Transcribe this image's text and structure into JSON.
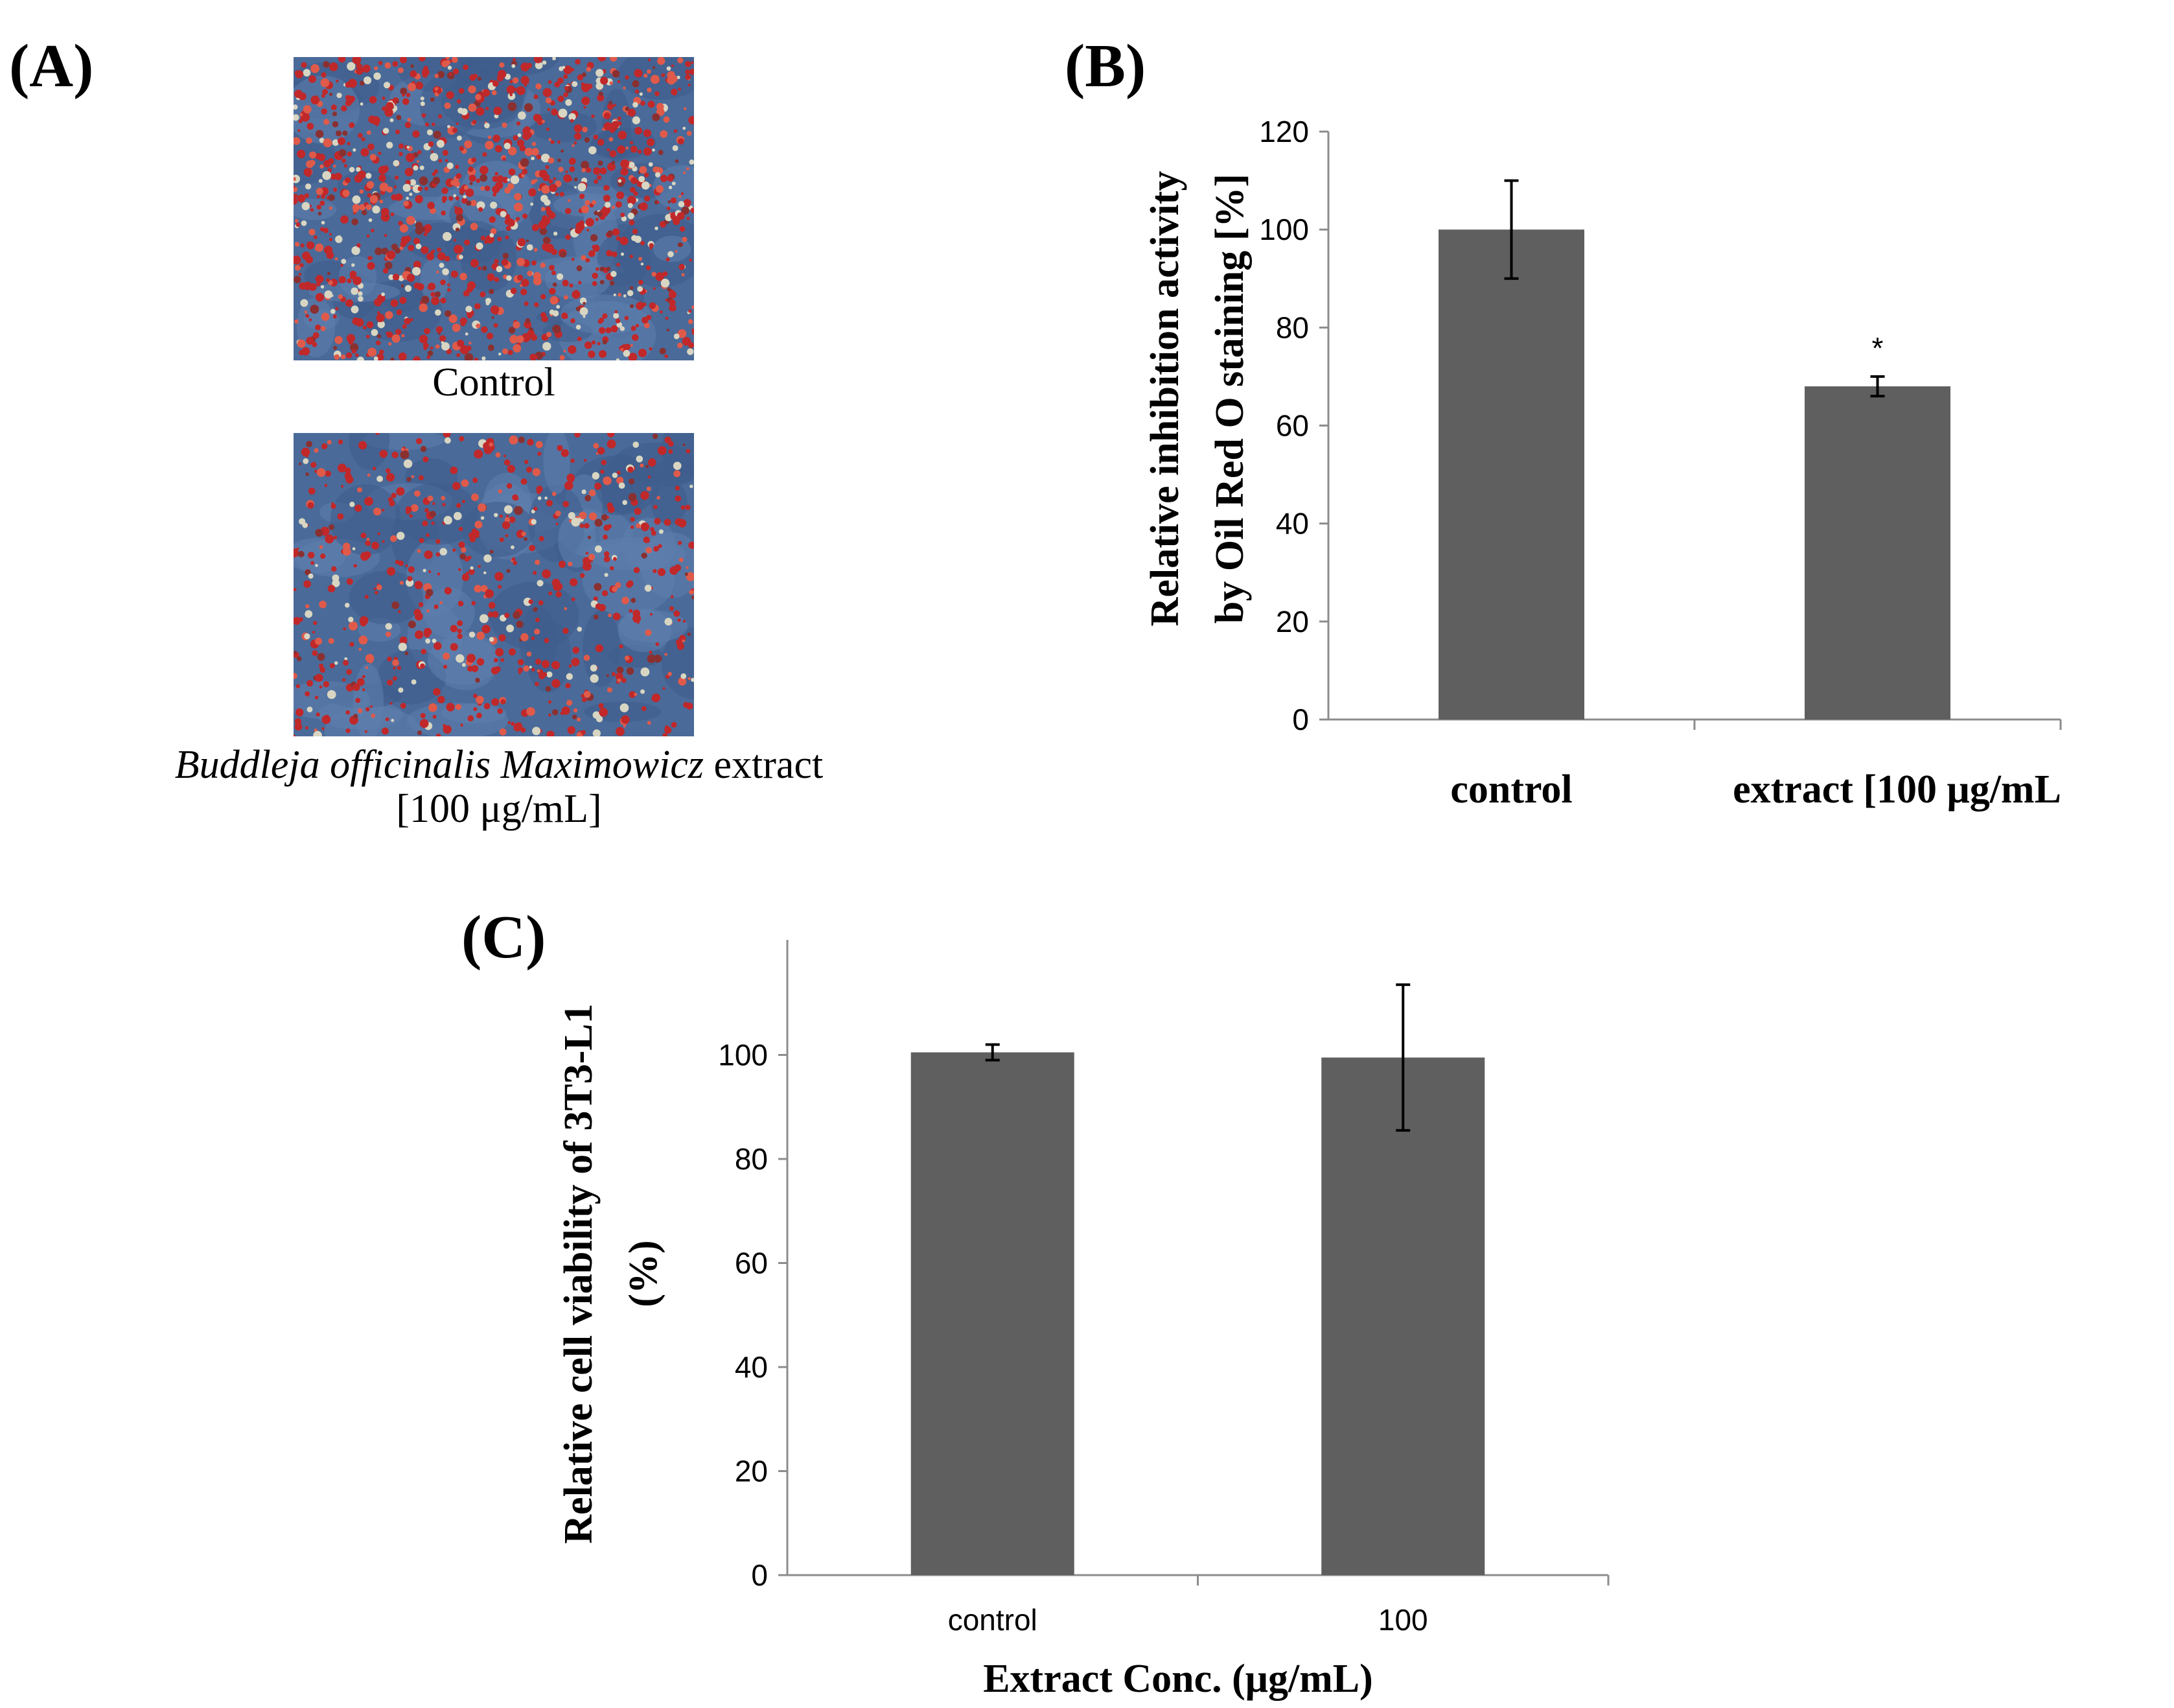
{
  "panels": {
    "a": {
      "label": "(A)",
      "control_caption": "Control",
      "extract_caption_species": "Buddleja officinalis Maximowicz",
      "extract_caption_suffix": "extract",
      "extract_caption_dose": "[100 μg/mL]"
    },
    "b": {
      "label": "(B)"
    },
    "c": {
      "label": "(C)"
    }
  },
  "colors": {
    "bar": "#5f5f5f",
    "axis": "#8c8c8c",
    "stain_red": "#c0282a",
    "cell_blue": "#4a6a99"
  },
  "chart_data": [
    {
      "id": "B",
      "type": "bar",
      "categories": [
        "control",
        "extract [100 μg/mL"
      ],
      "values": [
        100,
        68
      ],
      "error": [
        10,
        2
      ],
      "annotations": [
        "",
        "*"
      ],
      "title": "",
      "xlabel": "",
      "ylabel_lines": [
        "Relative inhibition activity",
        "by Oil Red O staining [%]"
      ],
      "ylim": [
        0,
        120
      ],
      "yticks": [
        0,
        20,
        40,
        60,
        80,
        100,
        120
      ],
      "grid": false
    },
    {
      "id": "C",
      "type": "bar",
      "categories": [
        "control",
        "100"
      ],
      "values": [
        100.5,
        99.5
      ],
      "error": [
        1.5,
        14
      ],
      "title": "",
      "xlabel": "Extract Conc. (μg/mL)",
      "ylabel_lines": [
        "Relative cell viability of 3T3-L1",
        "(%)"
      ],
      "ylim": [
        0,
        120
      ],
      "yticks": [
        0,
        20,
        40,
        60,
        80,
        100
      ],
      "grid": false
    }
  ]
}
